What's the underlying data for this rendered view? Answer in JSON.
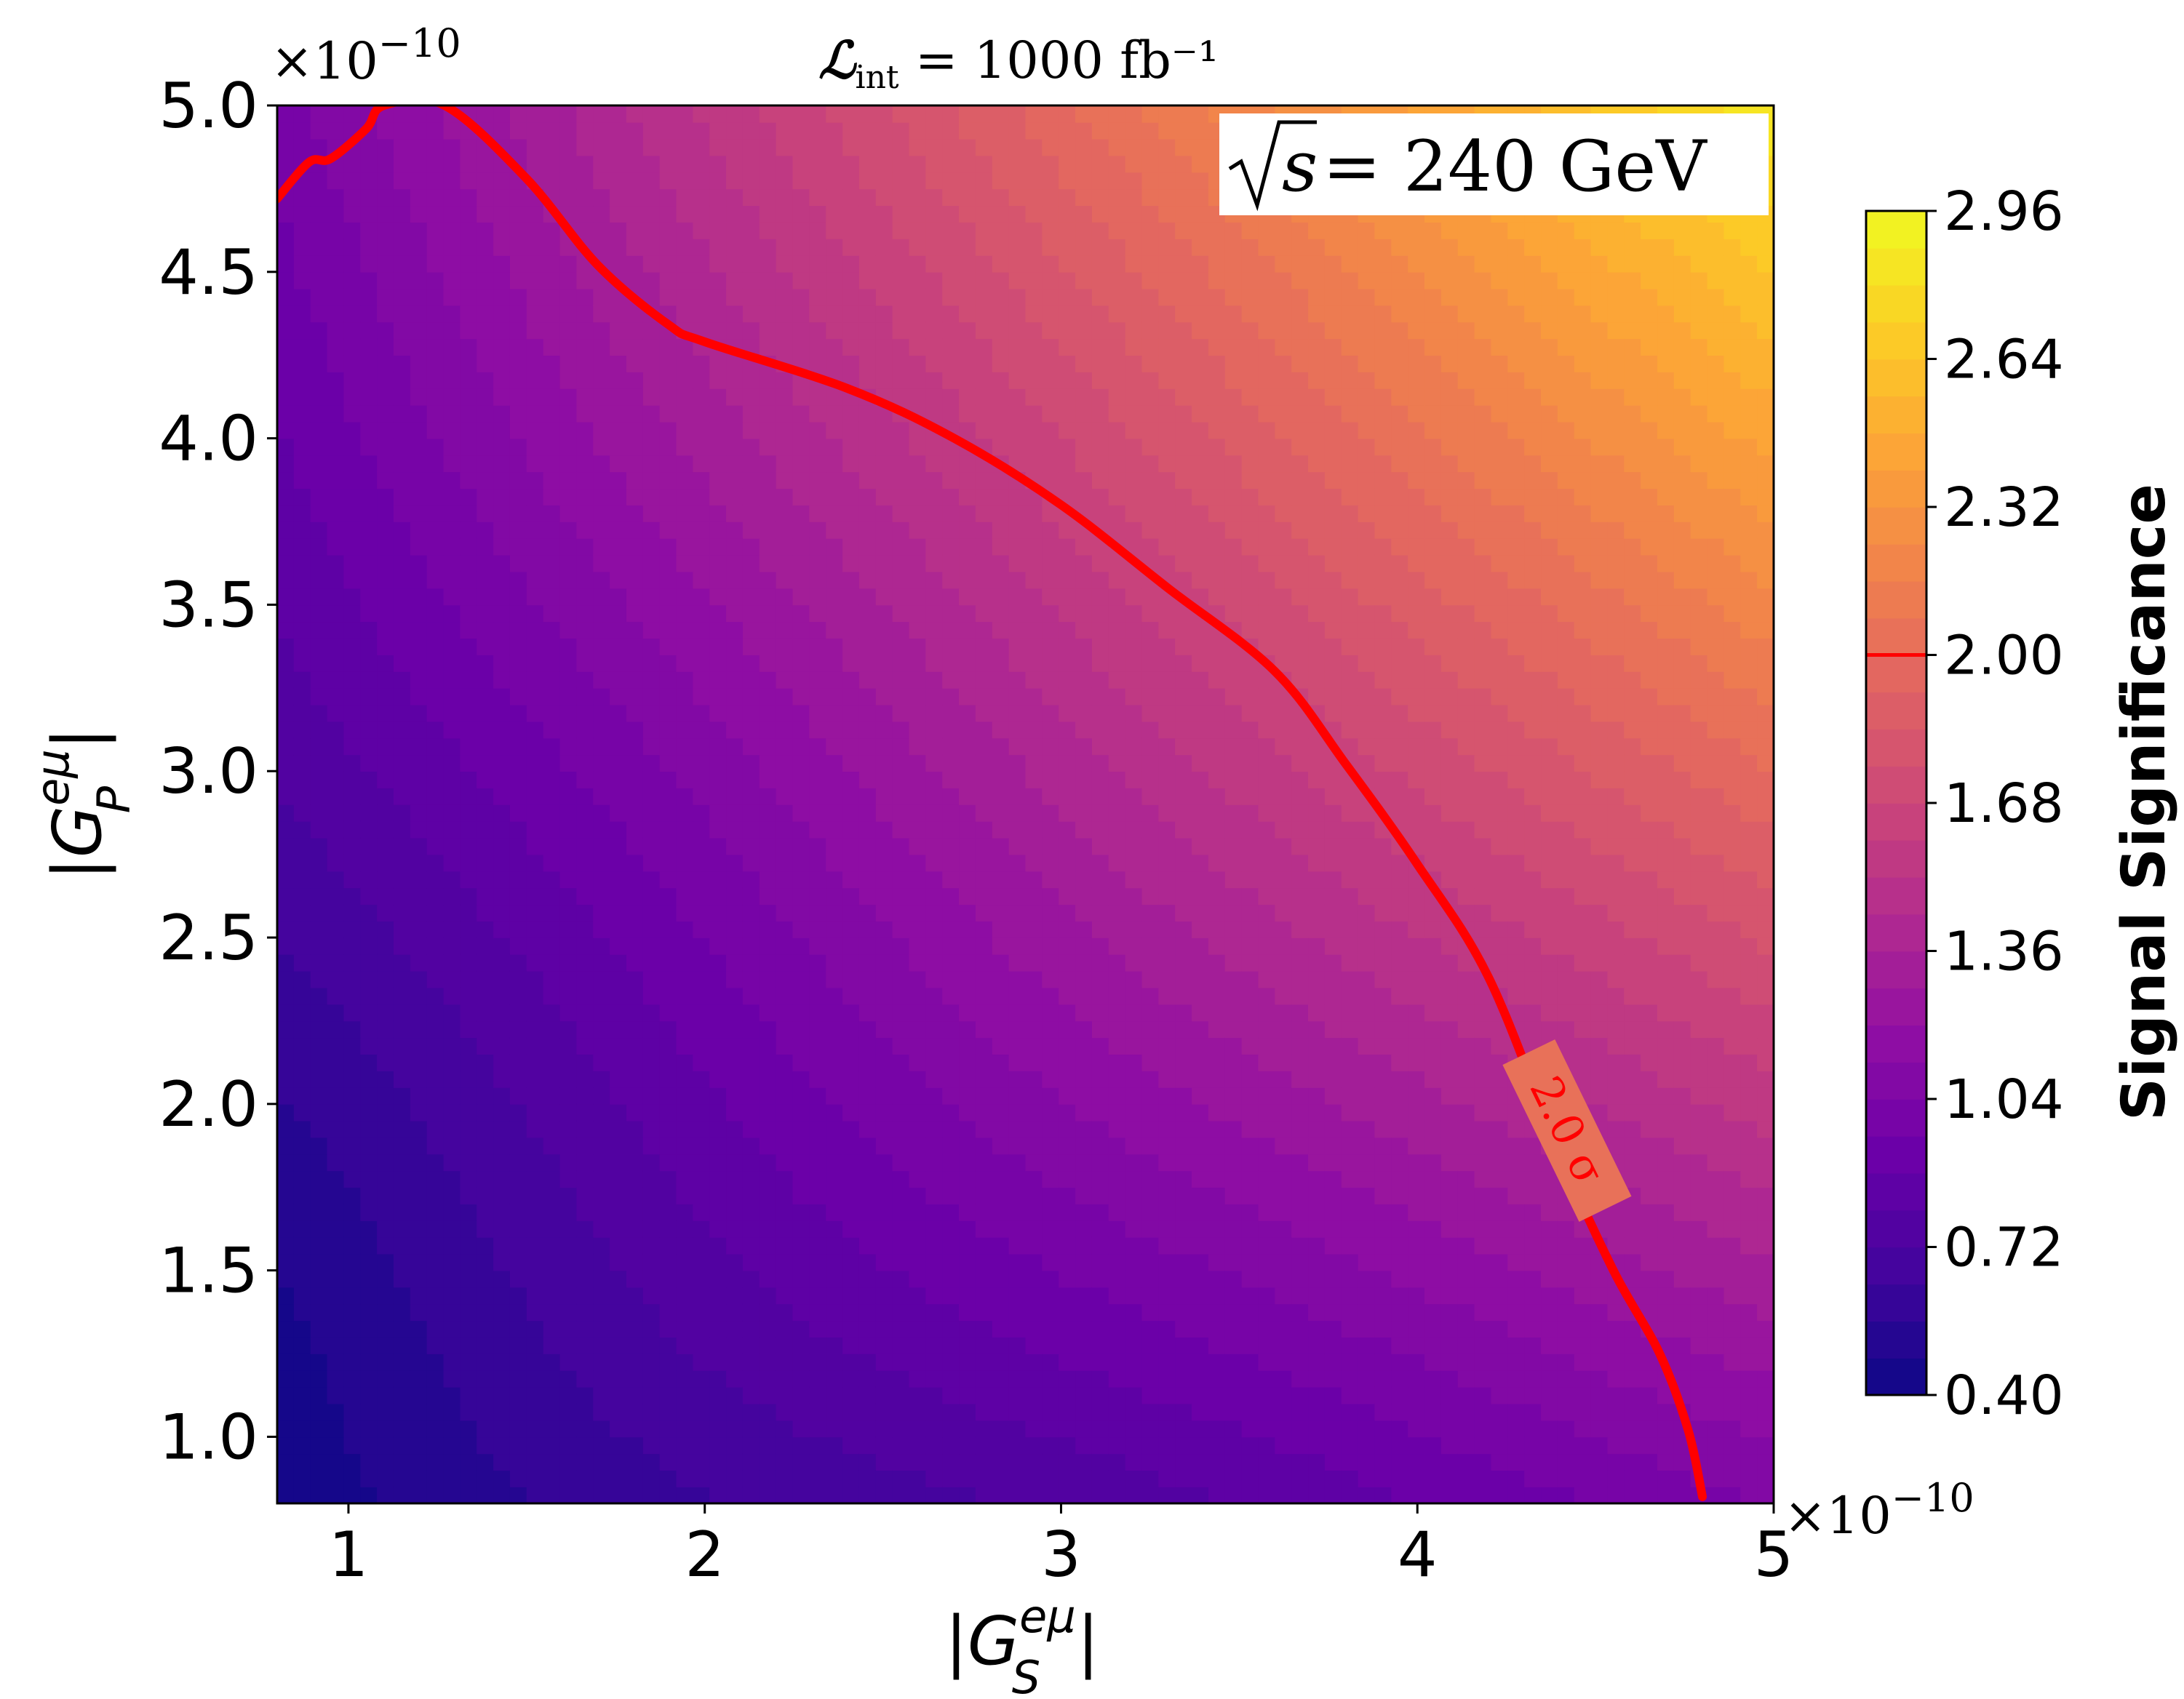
{
  "chart_data": {
    "type": "heatmap",
    "title": "ℒint = 1000 fb⁻¹",
    "title_parts": {
      "symbol": "ℒ",
      "subscript": "int",
      "rest": " = 1000 fb⁻¹"
    },
    "annotation": "√s = 240 GeV",
    "annotation_parts": {
      "root": "s",
      "rest": " = 240 GeV"
    },
    "xlabel": "|G_S^eμ|",
    "xlabel_parts": {
      "base": "G",
      "sup": "eμ",
      "sub": "S"
    },
    "ylabel": "|G_P^eμ|",
    "ylabel_parts": {
      "base": "G",
      "sup": "eμ",
      "sub": "P"
    },
    "x_offset_text": "×10⁻¹⁰",
    "y_offset_text": "×10⁻¹⁰",
    "offset_parts": {
      "mult": "×10",
      "exp": "−10"
    },
    "xlim": [
      0.8,
      5.0
    ],
    "ylim": [
      0.8,
      5.0
    ],
    "xticks": [
      1,
      2,
      3,
      4,
      5
    ],
    "xtick_labels": [
      "1",
      "2",
      "3",
      "4",
      "5"
    ],
    "yticks": [
      1.0,
      1.5,
      2.0,
      2.5,
      3.0,
      3.5,
      4.0,
      4.5,
      5.0
    ],
    "ytick_labels": [
      "1.0",
      "1.5",
      "2.0",
      "2.5",
      "3.0",
      "3.5",
      "4.0",
      "4.5",
      "5.0"
    ],
    "colorbar": {
      "label": "Signal Significance",
      "range": [
        0.4,
        2.96
      ],
      "ticks": [
        0.4,
        0.72,
        1.04,
        1.36,
        1.68,
        2.0,
        2.32,
        2.64,
        2.96
      ],
      "tick_labels": [
        "0.40",
        "0.72",
        "1.04",
        "1.36",
        "1.68",
        "2.00",
        "2.32",
        "2.64",
        "2.96"
      ],
      "colormap": "plasma",
      "levels": 32,
      "marked_level": 2.0,
      "marked_level_color": "#ff0000"
    },
    "contour_line": {
      "level": 2.0,
      "label": "2.0 σ",
      "color": "#ff0000",
      "x": [
        0.8,
        0.89,
        0.95,
        1.05,
        1.1,
        1.27,
        1.5,
        1.7,
        1.9,
        2.0,
        2.4,
        2.7,
        3.0,
        3.3,
        3.6,
        3.8,
        4.0,
        4.2,
        4.4,
        4.55,
        4.68,
        4.76,
        4.8
      ],
      "y": [
        4.72,
        4.83,
        4.84,
        4.93,
        5.0,
        5.0,
        4.78,
        4.52,
        4.34,
        4.29,
        4.15,
        4.0,
        3.8,
        3.55,
        3.3,
        3.02,
        2.72,
        2.38,
        1.85,
        1.5,
        1.25,
        1.02,
        0.82
      ]
    },
    "grid": false,
    "legend": "none"
  }
}
